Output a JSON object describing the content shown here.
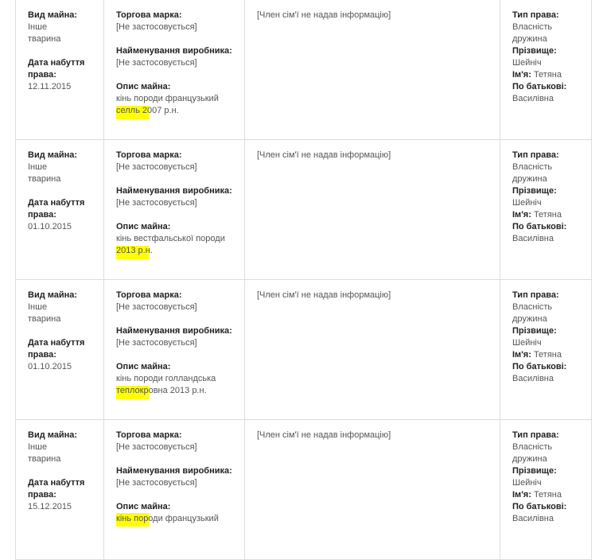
{
  "labels": {
    "property_type": "Вид майна:",
    "acquisition_date": "Дата набуття права:",
    "trademark": "Торгова марка:",
    "manufacturer": "Найменування виробника:",
    "description": "Опис майна:",
    "right_type": "Тип права:",
    "surname": "Прізвище:",
    "name": "Ім'я:",
    "patronymic": "По батькові:"
  },
  "highlight_color": "#ffff00",
  "rows": [
    {
      "property_type": "Інше тварина",
      "date": "12.11.2015",
      "trademark": "[Не застосовується]",
      "manufacturer": "[Не застосовується]",
      "description": "кінь породи французький селль 2007 р.н.",
      "family": "[Член сім'ї не надав інформацію]",
      "right_type": "Власність дружина",
      "surname": "Шейніч",
      "name": "Тетяна",
      "patronymic": "Василівна"
    },
    {
      "property_type": "Інше тварина",
      "date": "01.10.2015",
      "trademark": "[Не застосовується]",
      "manufacturer": "[Не застосовується]",
      "description": "кінь вестфальської породи 2013 р.н.",
      "family": "[Член сім'ї не надав інформацію]",
      "right_type": "Власність дружина",
      "surname": "Шейніч",
      "name": "Тетяна",
      "patronymic": "Василівна"
    },
    {
      "property_type": "Інше тварина",
      "date": "01.10.2015",
      "trademark": "[Не застосовується]",
      "manufacturer": "[Не застосовується]",
      "description": "кінь породи голландська теплокровна 2013 р.н.",
      "family": "[Член сім'ї не надав інформацію]",
      "right_type": "Власність дружина",
      "surname": "Шейніч",
      "name": "Тетяна",
      "patronymic": "Василівна"
    },
    {
      "property_type": "Інше тварина",
      "date": "15.12.2015",
      "trademark": "[Не застосовується]",
      "manufacturer": "[Не застосовується]",
      "description": "кінь породи французький",
      "family": "[Член сім'ї не надав інформацію]",
      "right_type": "Власність дружина",
      "surname": "Шейніч",
      "name": "Тетяна",
      "patronymic": "Василівна"
    }
  ]
}
